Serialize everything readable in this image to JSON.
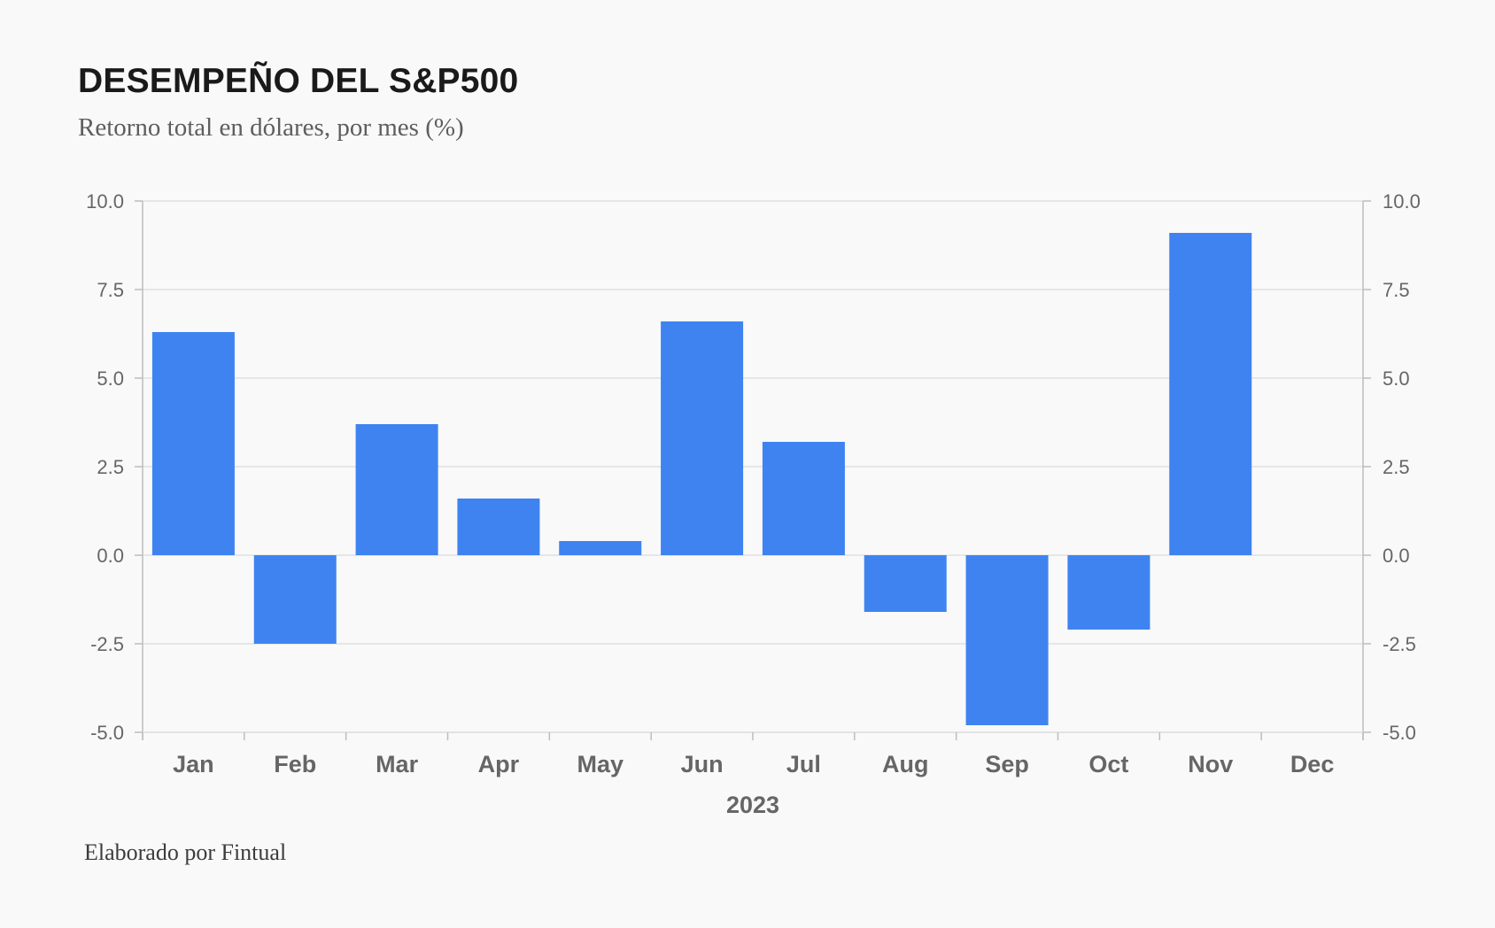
{
  "header": {
    "title": "DESEMPEÑO DEL S&P500",
    "subtitle": "Retorno total en dólares, por mes (%)"
  },
  "footer": {
    "credit": "Elaborado por Fintual"
  },
  "colors": {
    "bar": "#3f83f1",
    "grid": "#e0e0e0",
    "axis": "#bdbdbd",
    "background": "#f9f9f9"
  },
  "chart_data": {
    "type": "bar",
    "title": "DESEMPEÑO DEL S&P500",
    "subtitle": "Retorno total en dólares, por mes (%)",
    "xlabel": "2023",
    "ylabel": "",
    "categories": [
      "Jan",
      "Feb",
      "Mar",
      "Apr",
      "May",
      "Jun",
      "Jul",
      "Aug",
      "Sep",
      "Oct",
      "Nov",
      "Dec"
    ],
    "values": [
      6.3,
      -2.5,
      3.7,
      1.6,
      0.4,
      6.6,
      3.2,
      -1.6,
      -4.8,
      -2.1,
      9.1,
      null
    ],
    "ylim": [
      -5.0,
      10.0
    ],
    "yticks": [
      "10.0",
      "7.5",
      "5.0",
      "2.5",
      "0.0",
      "-2.5",
      "-5.0"
    ],
    "ytick_values": [
      10.0,
      7.5,
      5.0,
      2.5,
      0.0,
      -2.5,
      -5.0
    ],
    "grid": true,
    "y_axis_both_sides": true,
    "legend": "none"
  }
}
